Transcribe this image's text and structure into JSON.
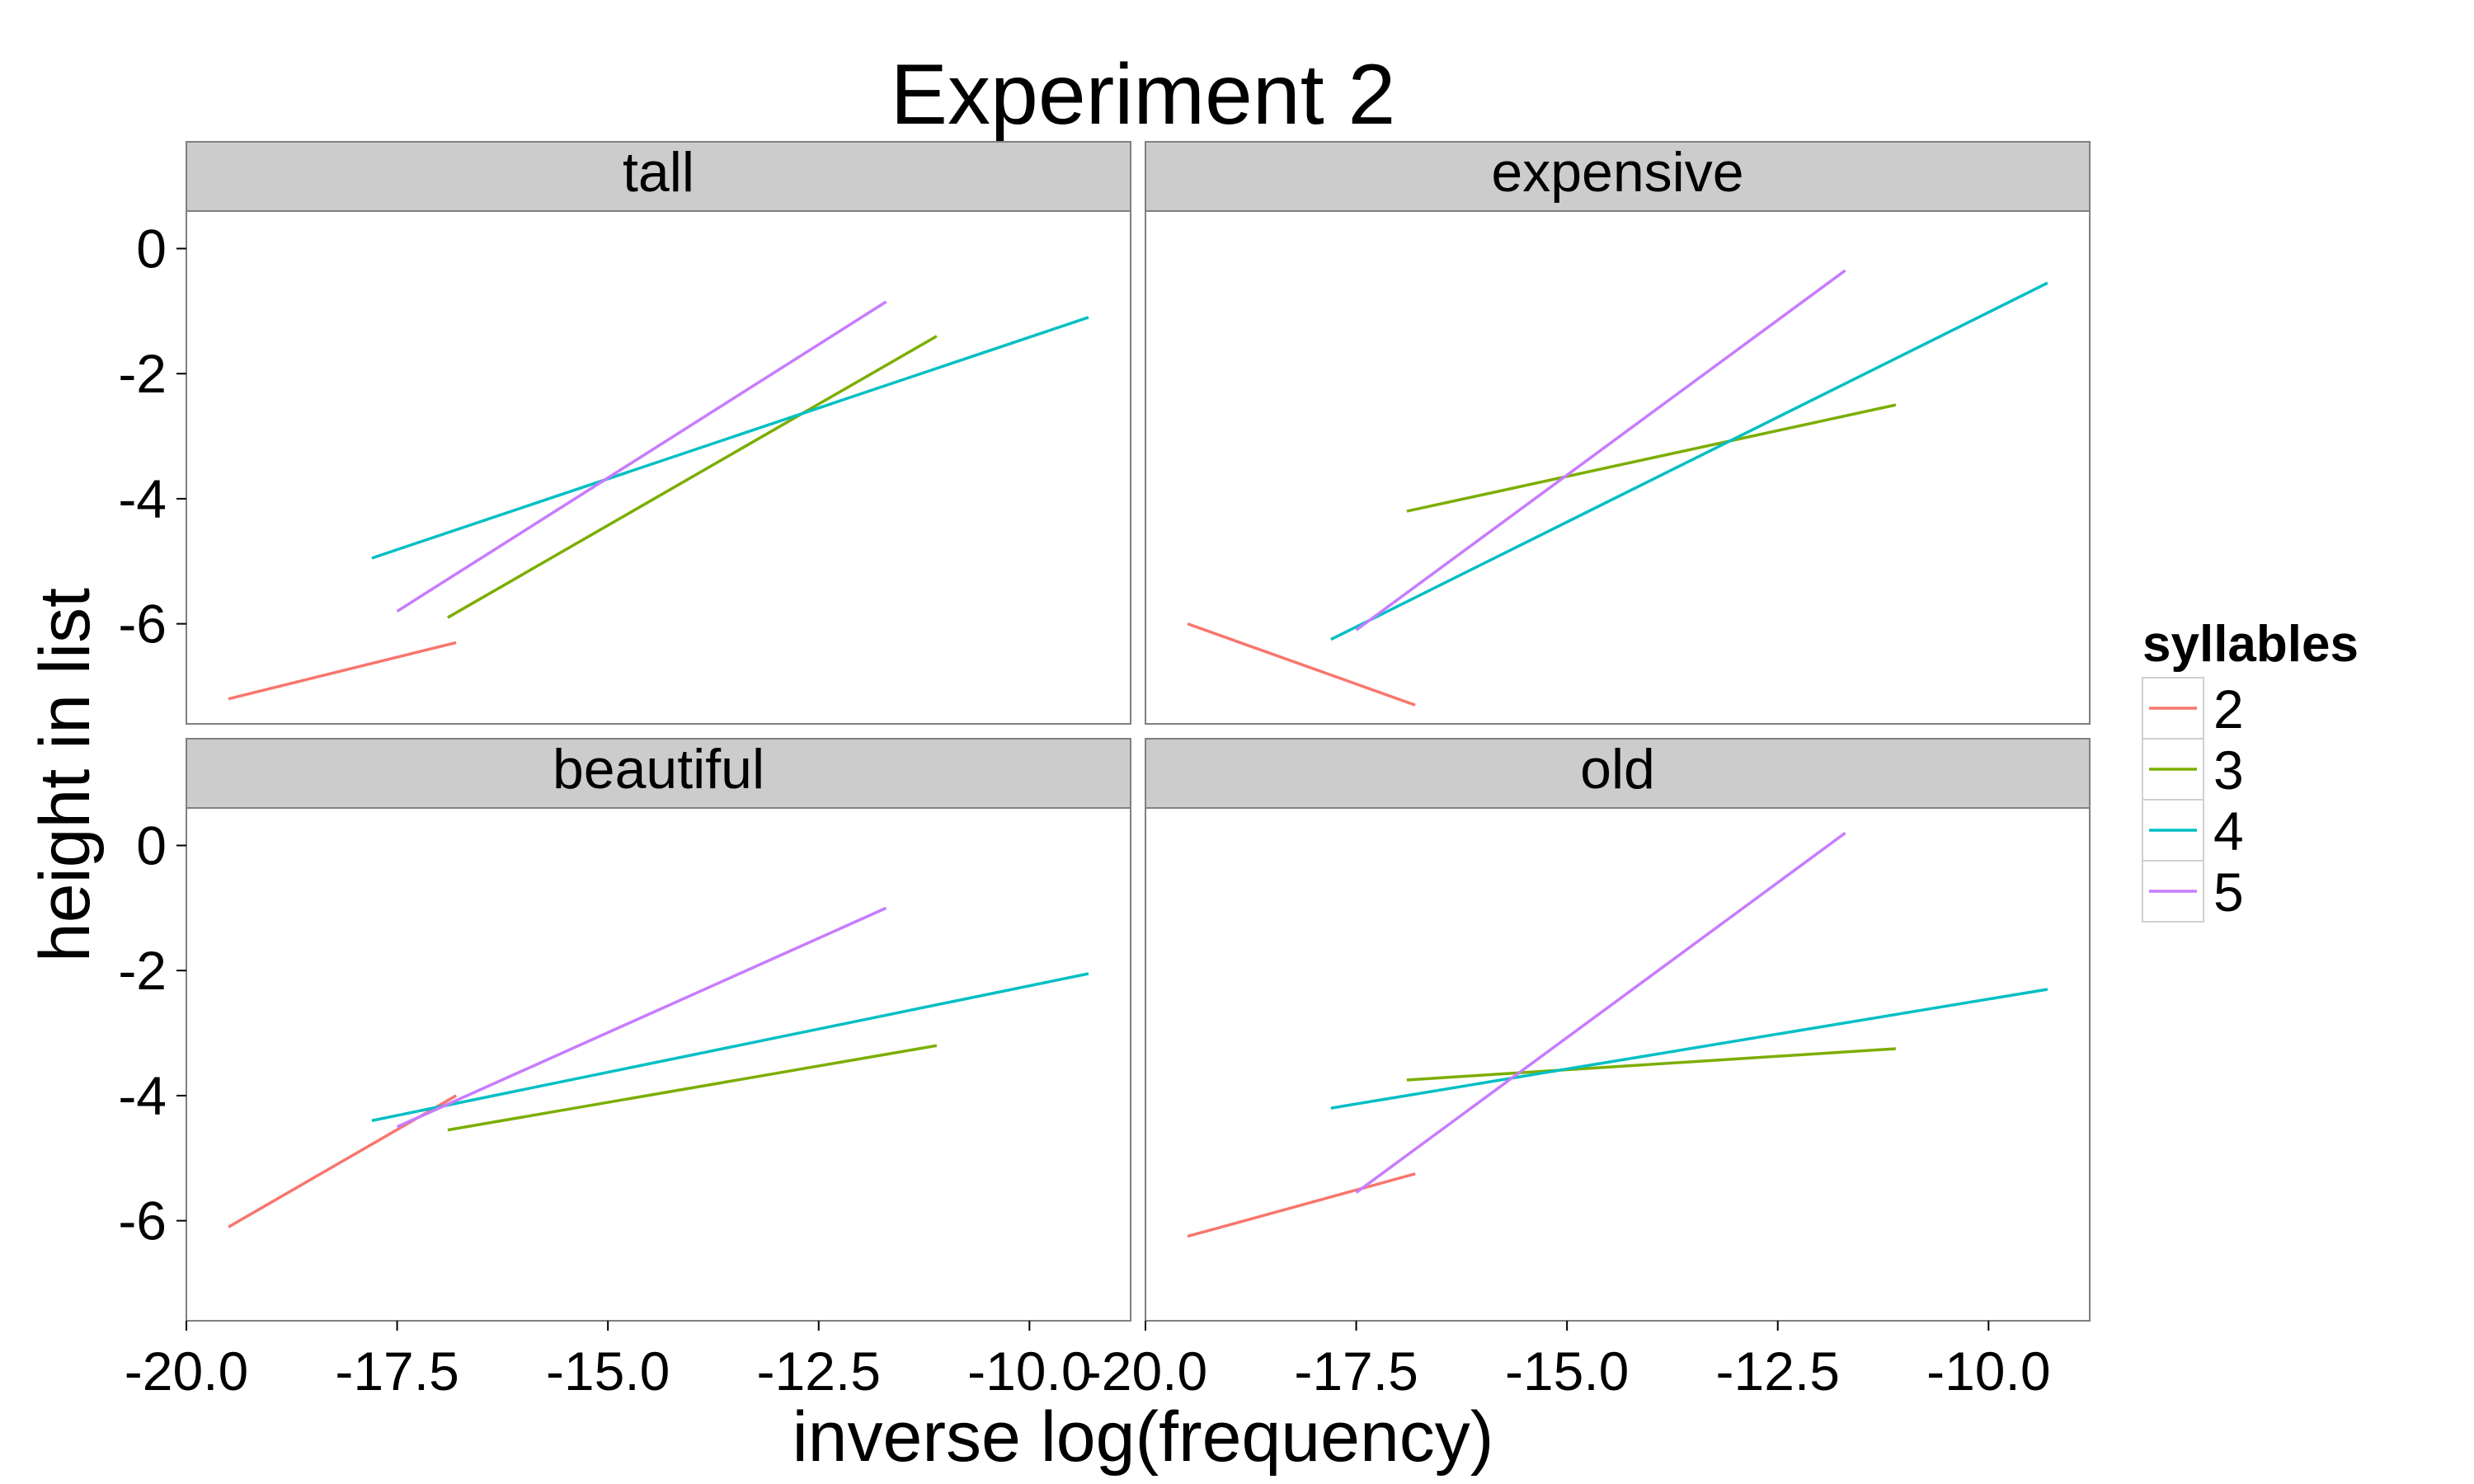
{
  "chart_data": {
    "type": "line",
    "title": "Experiment 2",
    "xlabel": "inverse log(frequency)",
    "ylabel": "height in list",
    "xlim": [
      -20.0,
      -8.8
    ],
    "ylim": [
      -7.6,
      0.6
    ],
    "x_ticks": [
      "-20.0",
      "-17.5",
      "-15.0",
      "-12.5",
      "-10.0"
    ],
    "y_ticks": [
      "0",
      "-2",
      "-4",
      "-6"
    ],
    "grid": false,
    "legend": {
      "title": "syllables",
      "position": "right",
      "items": [
        {
          "label": "2",
          "color": "#F8766D"
        },
        {
          "label": "3",
          "color": "#7CAE00"
        },
        {
          "label": "4",
          "color": "#00BFC4"
        },
        {
          "label": "5",
          "color": "#C77CFF"
        }
      ]
    },
    "panels": [
      {
        "name": "tall",
        "series": [
          {
            "name": "2",
            "x": [
              -19.5,
              -16.8
            ],
            "y": [
              -7.2,
              -6.3
            ]
          },
          {
            "name": "3",
            "x": [
              -16.9,
              -11.1
            ],
            "y": [
              -5.9,
              -1.4
            ]
          },
          {
            "name": "4",
            "x": [
              -17.8,
              -9.3
            ],
            "y": [
              -4.95,
              -1.1
            ]
          },
          {
            "name": "5",
            "x": [
              -17.5,
              -11.7
            ],
            "y": [
              -5.8,
              -0.85
            ]
          }
        ]
      },
      {
        "name": "expensive",
        "series": [
          {
            "name": "2",
            "x": [
              -19.5,
              -16.8
            ],
            "y": [
              -6.0,
              -7.3
            ]
          },
          {
            "name": "3",
            "x": [
              -16.9,
              -11.1
            ],
            "y": [
              -4.2,
              -2.5
            ]
          },
          {
            "name": "4",
            "x": [
              -17.8,
              -9.3
            ],
            "y": [
              -6.25,
              -0.55
            ]
          },
          {
            "name": "5",
            "x": [
              -17.5,
              -11.7
            ],
            "y": [
              -6.1,
              -0.35
            ]
          }
        ]
      },
      {
        "name": "beautiful",
        "series": [
          {
            "name": "2",
            "x": [
              -19.5,
              -16.8
            ],
            "y": [
              -6.1,
              -4.0
            ]
          },
          {
            "name": "3",
            "x": [
              -16.9,
              -11.1
            ],
            "y": [
              -4.55,
              -3.2
            ]
          },
          {
            "name": "4",
            "x": [
              -17.8,
              -9.3
            ],
            "y": [
              -4.4,
              -2.05
            ]
          },
          {
            "name": "5",
            "x": [
              -17.5,
              -11.7
            ],
            "y": [
              -4.5,
              -1.0
            ]
          }
        ]
      },
      {
        "name": "old",
        "series": [
          {
            "name": "2",
            "x": [
              -19.5,
              -16.8
            ],
            "y": [
              -6.25,
              -5.25
            ]
          },
          {
            "name": "3",
            "x": [
              -16.9,
              -11.1
            ],
            "y": [
              -3.75,
              -3.25
            ]
          },
          {
            "name": "4",
            "x": [
              -17.8,
              -9.3
            ],
            "y": [
              -4.2,
              -2.3
            ]
          },
          {
            "name": "5",
            "x": [
              -17.5,
              -11.7
            ],
            "y": [
              -5.55,
              0.2
            ]
          }
        ]
      }
    ]
  }
}
